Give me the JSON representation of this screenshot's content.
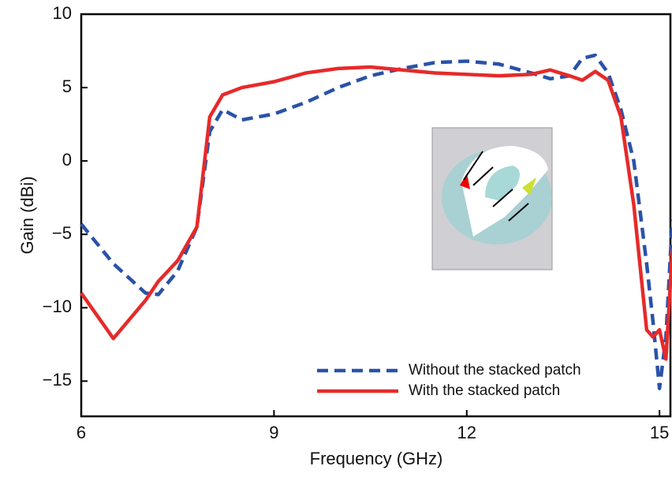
{
  "chart_data": {
    "type": "line",
    "x_label": "Frequency (GHz)",
    "y_label": "Gain (dBi)",
    "x": [
      6,
      6.5,
      7,
      7.2,
      7.5,
      7.8,
      8,
      8.2,
      8.5,
      9,
      9.5,
      10,
      10.5,
      11,
      11.5,
      12,
      12.5,
      13,
      13.3,
      13.6,
      13.8,
      14,
      14.2,
      14.4,
      14.6,
      14.8,
      14.9,
      15,
      15.1,
      15.2
    ],
    "series": [
      {
        "name": "Without the stacked patch",
        "color": "#2a52a8",
        "dash": true,
        "values": [
          -4.3,
          -7,
          -9,
          -9.1,
          -7.5,
          -4.5,
          2,
          3.5,
          2.8,
          3.2,
          4,
          5,
          5.8,
          6.3,
          6.7,
          6.8,
          6.6,
          6,
          5.6,
          5.8,
          7,
          7.2,
          6,
          3.5,
          0,
          -7,
          -11,
          -15.5,
          -12,
          -4
        ]
      },
      {
        "name": "With the stacked patch",
        "color": "#e62a2a",
        "dash": false,
        "values": [
          -9,
          -12.1,
          -9.5,
          -8.2,
          -6.8,
          -4.5,
          3,
          4.5,
          5,
          5.4,
          6,
          6.3,
          6.4,
          6.2,
          6,
          5.9,
          5.8,
          5.9,
          6.2,
          5.8,
          5.5,
          6.1,
          5.5,
          3,
          -3,
          -11.5,
          -12,
          -11.5,
          -13.5,
          -6
        ]
      }
    ],
    "xlim": [
      6,
      15.17
    ],
    "ylim": [
      -17.4,
      10
    ],
    "xticks": [
      6,
      9,
      12,
      15
    ],
    "yticks": [
      {
        "value": -15,
        "label": "−15"
      },
      {
        "value": -10,
        "label": "−10"
      },
      {
        "value": -5,
        "label": "−5"
      },
      0,
      5,
      10
    ],
    "legend": "lower-right"
  }
}
